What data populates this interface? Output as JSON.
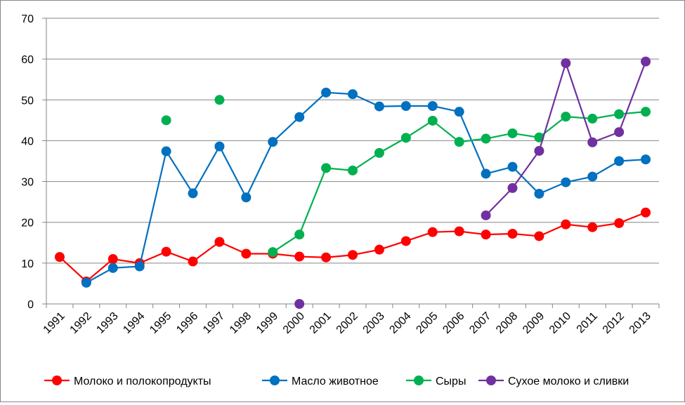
{
  "chart_data": {
    "type": "line",
    "title": "",
    "xlabel": "",
    "ylabel": "",
    "x": [
      "1991",
      "1992",
      "1993",
      "1994",
      "1995",
      "1996",
      "1997",
      "1998",
      "1999",
      "2000",
      "2001",
      "2002",
      "2003",
      "2004",
      "2005",
      "2006",
      "2007",
      "2008",
      "2009",
      "2010",
      "2011",
      "2012",
      "2013"
    ],
    "ylim": [
      0,
      70
    ],
    "yticks": [
      0,
      10,
      20,
      30,
      40,
      50,
      60,
      70
    ],
    "grid": true,
    "legend_position": "bottom",
    "series": [
      {
        "name": "Молоко и полокопродукты",
        "color": "#ff0000",
        "values": [
          11.5,
          5.5,
          11,
          10,
          12.8,
          10.4,
          15.2,
          12.3,
          12.3,
          11.6,
          11.4,
          12,
          13.3,
          15.4,
          17.6,
          17.8,
          17,
          17.2,
          16.6,
          19.5,
          18.8,
          19.8,
          22.4
        ]
      },
      {
        "name": "Масло животное",
        "color": "#0070c0",
        "values": [
          null,
          5.2,
          8.8,
          9.2,
          37.4,
          27.1,
          38.6,
          26.1,
          39.7,
          45.8,
          51.8,
          51.4,
          48.4,
          48.5,
          48.5,
          47.1,
          31.9,
          33.6,
          27,
          29.8,
          31.2,
          35,
          35.4
        ]
      },
      {
        "name": "Сыры",
        "color": "#00b050",
        "values": [
          null,
          null,
          null,
          null,
          45,
          null,
          50,
          null,
          12.7,
          17,
          33.3,
          32.7,
          37,
          40.7,
          44.9,
          39.7,
          40.5,
          41.8,
          40.8,
          45.9,
          45.4,
          46.5,
          47.1
        ]
      },
      {
        "name": "Сухое молоко и сливки",
        "color": "#7030a0",
        "values": [
          null,
          null,
          null,
          null,
          null,
          null,
          null,
          null,
          null,
          0,
          null,
          null,
          null,
          null,
          null,
          null,
          21.7,
          28.4,
          37.5,
          59,
          39.6,
          42.1,
          59.4
        ]
      }
    ]
  }
}
